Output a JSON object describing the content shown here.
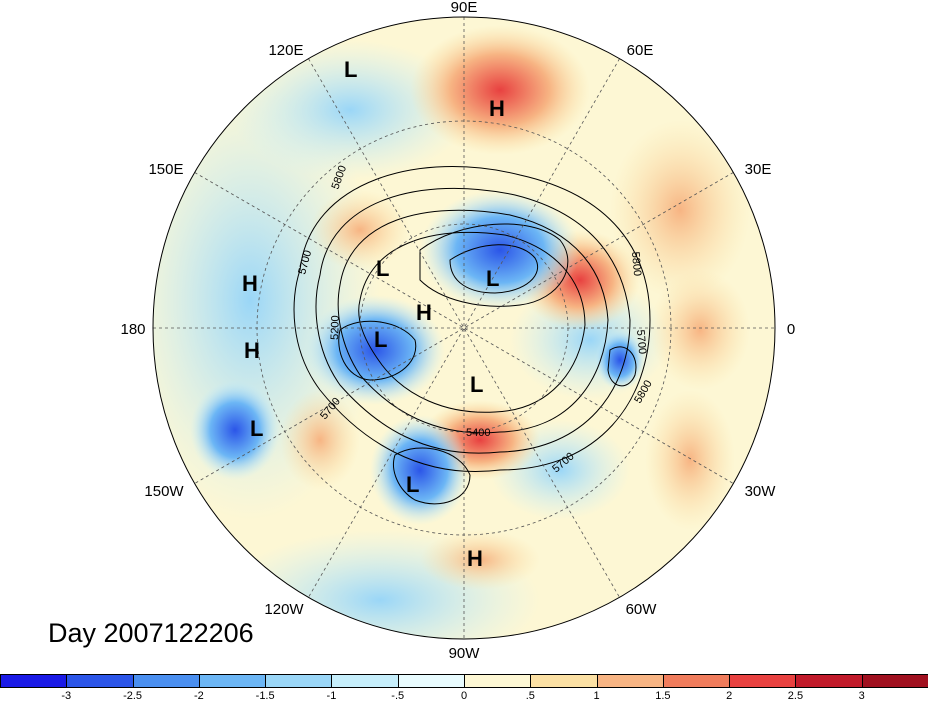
{
  "date_label": "Day 2007122206",
  "longitude_labels": [
    "90E",
    "60E",
    "30E",
    "0",
    "30W",
    "60W",
    "90W",
    "120W",
    "150W",
    "180",
    "150E",
    "120E"
  ],
  "contour_labels": [
    "5800",
    "5700",
    "5200",
    "5700",
    "5400",
    "5700",
    "5800",
    "5700",
    "5800"
  ],
  "pressure_centers": [
    {
      "name": "L",
      "kind": "low"
    },
    {
      "name": "H",
      "kind": "high"
    },
    {
      "name": "L",
      "kind": "low"
    },
    {
      "name": "L",
      "kind": "low"
    },
    {
      "name": "H",
      "kind": "high"
    },
    {
      "name": "L",
      "kind": "low"
    },
    {
      "name": "H",
      "kind": "high"
    },
    {
      "name": "H",
      "kind": "high"
    },
    {
      "name": "L",
      "kind": "low"
    },
    {
      "name": "L",
      "kind": "low"
    },
    {
      "name": "L",
      "kind": "low"
    },
    {
      "name": "H",
      "kind": "high"
    }
  ],
  "colorbar": {
    "ticks": [
      "-3",
      "-2.5",
      "-2",
      "-1.5",
      "-1",
      "-.5",
      "0",
      ".5",
      "1",
      "1.5",
      "2",
      "2.5",
      "3"
    ],
    "colors": [
      "#1a1ae6",
      "#2b55e8",
      "#4a8ff0",
      "#6cb6f5",
      "#9ad6f7",
      "#c6eefb",
      "#e8fbfe",
      "#fdf7d4",
      "#fbe0a4",
      "#f7b483",
      "#f07c5c",
      "#e84140",
      "#c11a2a",
      "#a0101f"
    ]
  }
}
